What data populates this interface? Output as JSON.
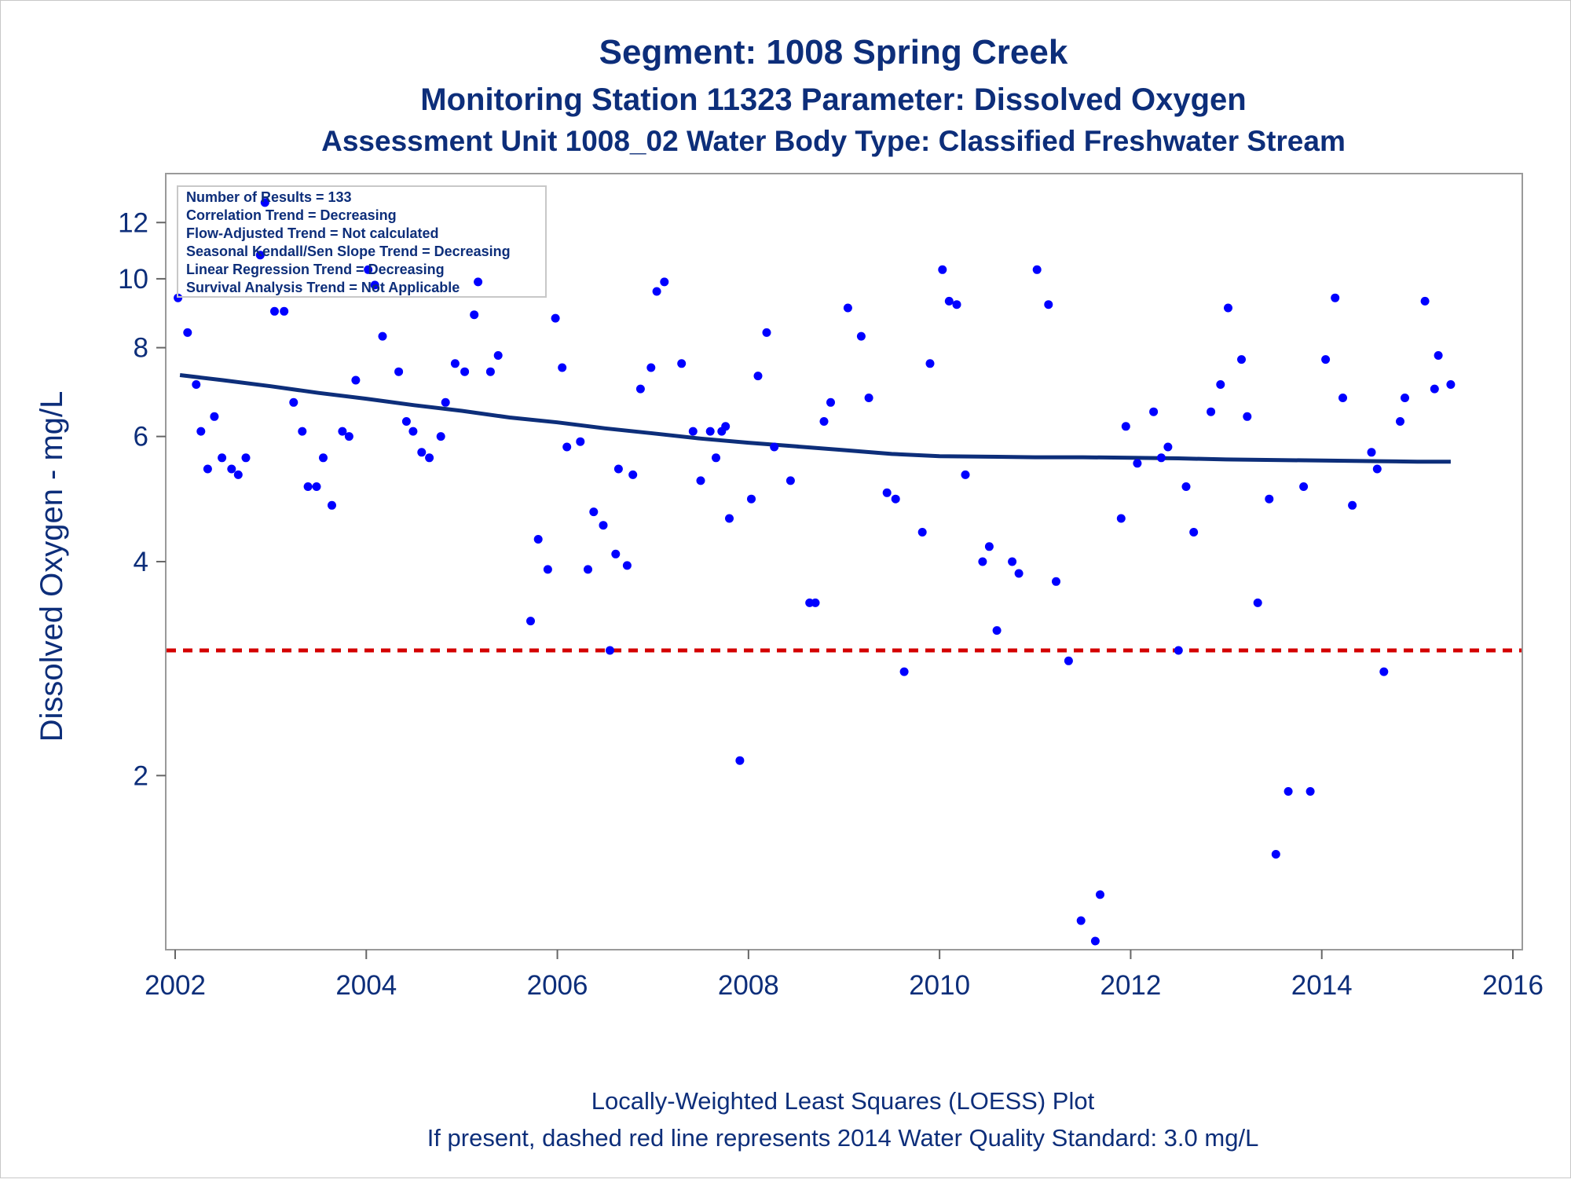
{
  "titles": {
    "line1": "Segment: 1008  Spring Creek",
    "line2": "Monitoring Station 11323 Parameter: Dissolved Oxygen",
    "line3": "Assessment Unit 1008_02   Water Body Type: Classified Freshwater Stream"
  },
  "footnotes": {
    "line1": "Locally-Weighted Least Squares (LOESS) Plot",
    "line2": "If present, dashed red line represents 2014 Water Quality Standard: 3.0 mg/L"
  },
  "stats_box": {
    "lines": [
      "Number of Results = 133",
      "Correlation Trend = Decreasing",
      "Flow-Adjusted Trend = Not calculated",
      "Seasonal Kendall/Sen Slope Trend = Decreasing",
      "Linear Regression Trend = Decreasing",
      "Survival Analysis Trend = Not Applicable"
    ]
  },
  "colors": {
    "points": "#0000ff",
    "loess": "#0d2e7a",
    "standard_line": "#d40000",
    "text": "#0d2e7a"
  },
  "chart_data": {
    "type": "scatter",
    "title": "Segment: 1008  Spring Creek",
    "xlabel": "",
    "ylabel": "Dissolved Oxygen - mg/L",
    "xlim": [
      2002,
      2016
    ],
    "ylim": [
      1.25,
      13
    ],
    "y_scale": "log",
    "x_ticks": [
      2002,
      2004,
      2006,
      2008,
      2010,
      2012,
      2014,
      2016
    ],
    "y_ticks": [
      2,
      4,
      6,
      8,
      10,
      12
    ],
    "reference_line": {
      "y": 3.0,
      "label": "2014 Water Quality Standard: 3.0 mg/L",
      "style": "dashed"
    },
    "points": [
      [
        2002.03,
        9.4
      ],
      [
        2002.13,
        8.4
      ],
      [
        2002.22,
        7.1
      ],
      [
        2002.27,
        6.1
      ],
      [
        2002.34,
        5.4
      ],
      [
        2002.41,
        6.4
      ],
      [
        2002.49,
        5.6
      ],
      [
        2002.59,
        5.4
      ],
      [
        2002.66,
        5.3
      ],
      [
        2002.74,
        5.6
      ],
      [
        2002.89,
        10.8
      ],
      [
        2002.94,
        12.8
      ],
      [
        2003.04,
        9.0
      ],
      [
        2003.14,
        9.0
      ],
      [
        2003.24,
        6.7
      ],
      [
        2003.33,
        6.1
      ],
      [
        2003.39,
        5.1
      ],
      [
        2003.48,
        5.1
      ],
      [
        2003.55,
        5.6
      ],
      [
        2003.64,
        4.8
      ],
      [
        2003.75,
        6.1
      ],
      [
        2003.82,
        6.0
      ],
      [
        2003.89,
        7.2
      ],
      [
        2004.02,
        10.3
      ],
      [
        2004.09,
        9.8
      ],
      [
        2004.17,
        8.3
      ],
      [
        2004.34,
        7.4
      ],
      [
        2004.42,
        6.3
      ],
      [
        2004.49,
        6.1
      ],
      [
        2004.58,
        5.7
      ],
      [
        2004.66,
        5.6
      ],
      [
        2004.78,
        6.0
      ],
      [
        2004.83,
        6.7
      ],
      [
        2004.93,
        7.6
      ],
      [
        2005.03,
        7.4
      ],
      [
        2005.13,
        8.9
      ],
      [
        2005.17,
        9.9
      ],
      [
        2005.3,
        7.4
      ],
      [
        2005.38,
        7.8
      ],
      [
        2005.72,
        3.3
      ],
      [
        2005.8,
        4.3
      ],
      [
        2005.9,
        3.9
      ],
      [
        2005.98,
        8.8
      ],
      [
        2006.05,
        7.5
      ],
      [
        2006.1,
        5.8
      ],
      [
        2006.24,
        5.9
      ],
      [
        2006.32,
        3.9
      ],
      [
        2006.38,
        4.7
      ],
      [
        2006.48,
        4.5
      ],
      [
        2006.55,
        3.0
      ],
      [
        2006.61,
        4.1
      ],
      [
        2006.64,
        5.4
      ],
      [
        2006.73,
        3.95
      ],
      [
        2006.79,
        5.3
      ],
      [
        2006.87,
        7.0
      ],
      [
        2006.98,
        7.5
      ],
      [
        2007.04,
        9.6
      ],
      [
        2007.12,
        9.9
      ],
      [
        2007.3,
        7.6
      ],
      [
        2007.42,
        6.1
      ],
      [
        2007.5,
        5.2
      ],
      [
        2007.6,
        6.1
      ],
      [
        2007.66,
        5.6
      ],
      [
        2007.72,
        6.1
      ],
      [
        2007.76,
        6.2
      ],
      [
        2007.8,
        4.6
      ],
      [
        2007.91,
        2.1
      ],
      [
        2008.03,
        4.9
      ],
      [
        2008.1,
        7.3
      ],
      [
        2008.19,
        8.4
      ],
      [
        2008.27,
        5.8
      ],
      [
        2008.44,
        5.2
      ],
      [
        2008.64,
        3.5
      ],
      [
        2008.7,
        3.5
      ],
      [
        2008.79,
        6.3
      ],
      [
        2008.86,
        6.7
      ],
      [
        2009.04,
        9.1
      ],
      [
        2009.18,
        8.3
      ],
      [
        2009.26,
        6.8
      ],
      [
        2009.45,
        5.0
      ],
      [
        2009.54,
        4.9
      ],
      [
        2009.63,
        2.8
      ],
      [
        2009.82,
        4.4
      ],
      [
        2009.9,
        7.6
      ],
      [
        2010.03,
        10.3
      ],
      [
        2010.1,
        9.3
      ],
      [
        2010.18,
        9.2
      ],
      [
        2010.27,
        5.3
      ],
      [
        2010.45,
        4.0
      ],
      [
        2010.52,
        4.2
      ],
      [
        2010.6,
        3.2
      ],
      [
        2010.76,
        4.0
      ],
      [
        2010.83,
        3.85
      ],
      [
        2011.02,
        10.3
      ],
      [
        2011.14,
        9.2
      ],
      [
        2011.22,
        3.75
      ],
      [
        2011.35,
        2.9
      ],
      [
        2011.48,
        1.25
      ],
      [
        2011.63,
        1.17
      ],
      [
        2011.68,
        1.36
      ],
      [
        2011.9,
        4.6
      ],
      [
        2011.95,
        6.2
      ],
      [
        2012.07,
        5.5
      ],
      [
        2012.24,
        6.5
      ],
      [
        2012.32,
        5.6
      ],
      [
        2012.39,
        5.8
      ],
      [
        2012.5,
        3.0
      ],
      [
        2012.58,
        5.1
      ],
      [
        2012.66,
        4.4
      ],
      [
        2012.84,
        6.5
      ],
      [
        2012.94,
        7.1
      ],
      [
        2013.02,
        9.1
      ],
      [
        2013.16,
        7.7
      ],
      [
        2013.22,
        6.4
      ],
      [
        2013.33,
        3.5
      ],
      [
        2013.45,
        4.9
      ],
      [
        2013.52,
        1.55
      ],
      [
        2013.65,
        1.9
      ],
      [
        2013.81,
        5.1
      ],
      [
        2013.88,
        1.9
      ],
      [
        2014.04,
        7.7
      ],
      [
        2014.14,
        9.4
      ],
      [
        2014.22,
        6.8
      ],
      [
        2014.32,
        4.8
      ],
      [
        2014.52,
        5.7
      ],
      [
        2014.58,
        5.4
      ],
      [
        2014.65,
        2.8
      ],
      [
        2014.82,
        6.3
      ],
      [
        2014.87,
        6.8
      ],
      [
        2015.08,
        9.3
      ],
      [
        2015.18,
        7.0
      ],
      [
        2015.22,
        7.8
      ],
      [
        2015.35,
        7.1
      ]
    ],
    "loess": [
      [
        2002.05,
        7.32
      ],
      [
        2002.5,
        7.2
      ],
      [
        2003.0,
        7.06
      ],
      [
        2003.5,
        6.91
      ],
      [
        2004.0,
        6.78
      ],
      [
        2004.5,
        6.64
      ],
      [
        2005.0,
        6.52
      ],
      [
        2005.5,
        6.38
      ],
      [
        2006.0,
        6.28
      ],
      [
        2006.5,
        6.16
      ],
      [
        2007.0,
        6.06
      ],
      [
        2007.5,
        5.96
      ],
      [
        2008.0,
        5.88
      ],
      [
        2008.5,
        5.81
      ],
      [
        2009.0,
        5.74
      ],
      [
        2009.5,
        5.67
      ],
      [
        2010.0,
        5.63
      ],
      [
        2010.5,
        5.62
      ],
      [
        2011.0,
        5.61
      ],
      [
        2011.5,
        5.61
      ],
      [
        2012.0,
        5.6
      ],
      [
        2012.5,
        5.59
      ],
      [
        2013.0,
        5.57
      ],
      [
        2013.5,
        5.56
      ],
      [
        2014.0,
        5.55
      ],
      [
        2014.5,
        5.54
      ],
      [
        2015.0,
        5.53
      ],
      [
        2015.35,
        5.53
      ]
    ]
  }
}
